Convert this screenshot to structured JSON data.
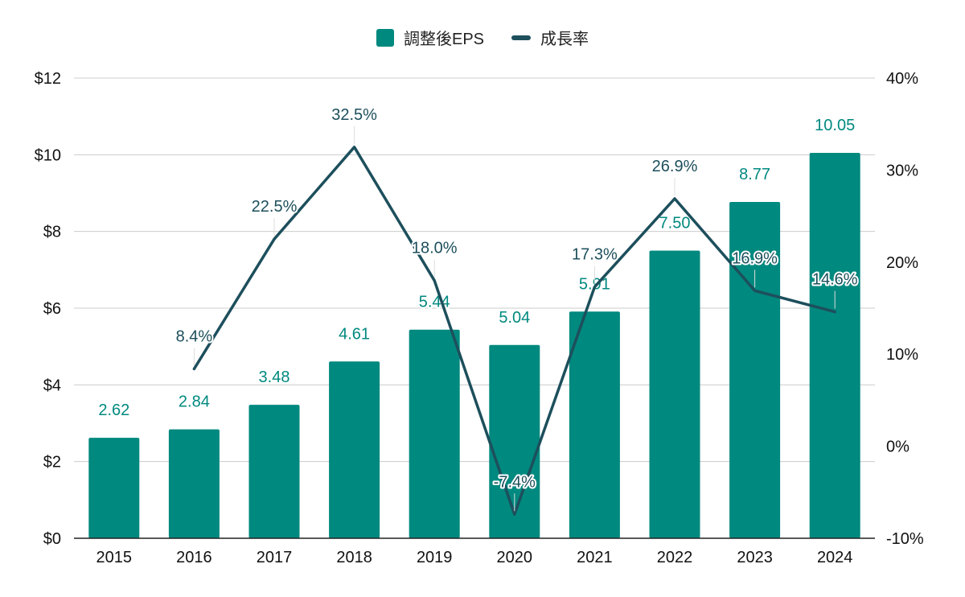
{
  "legend": {
    "bar_label": "調整後EPS",
    "line_label": "成長率"
  },
  "colors": {
    "bar": "#00897f",
    "line": "#1d4f5c",
    "grid": "#cccccc",
    "axis": "#222222"
  },
  "chart_data": {
    "type": "bar",
    "categories": [
      "2015",
      "2016",
      "2017",
      "2018",
      "2019",
      "2020",
      "2021",
      "2022",
      "2023",
      "2024"
    ],
    "series": [
      {
        "name": "調整後EPS",
        "type": "bar",
        "axis": "left",
        "values": [
          2.62,
          2.84,
          3.48,
          4.61,
          5.44,
          5.04,
          5.91,
          7.5,
          8.77,
          10.05
        ],
        "labels": [
          "2.62",
          "2.84",
          "3.48",
          "4.61",
          "5.44",
          "5.04",
          "5.91",
          "7.50",
          "8.77",
          "10.05"
        ]
      },
      {
        "name": "成長率",
        "type": "line",
        "axis": "right",
        "values": [
          null,
          8.4,
          22.5,
          32.5,
          18.0,
          -7.4,
          17.3,
          26.9,
          16.9,
          14.6
        ],
        "labels": [
          "",
          "8.4%",
          "22.5%",
          "32.5%",
          "18.0%",
          "-7.4%",
          "17.3%",
          "26.9%",
          "16.9%",
          "14.6%"
        ]
      }
    ],
    "y_left": {
      "lim": [
        0,
        12
      ],
      "ticks": [
        0,
        2,
        4,
        6,
        8,
        10,
        12
      ],
      "tick_labels": [
        "$0",
        "$2",
        "$4",
        "$6",
        "$8",
        "$10",
        "$12"
      ]
    },
    "y_right": {
      "lim": [
        -10,
        40
      ],
      "ticks": [
        -10,
        0,
        10,
        20,
        30,
        40
      ],
      "tick_labels": [
        "-10%",
        "0%",
        "10%",
        "20%",
        "30%",
        "40%"
      ]
    },
    "grid": true,
    "legend_position": "top-center"
  }
}
